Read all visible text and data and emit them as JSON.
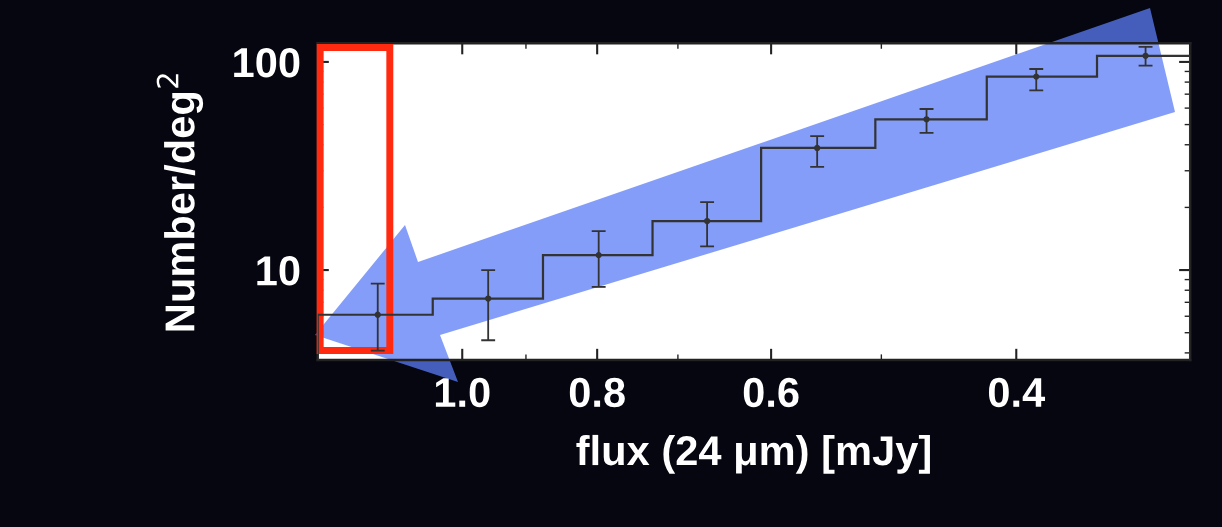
{
  "chart_data": {
    "type": "histogram",
    "xlabel": "flux (24 μm) [mJy]",
    "ylabel": "Number/deg$^{2}$",
    "bins": [
      1.27,
      1.05,
      0.875,
      0.73,
      0.61,
      0.505,
      0.42,
      0.35,
      0.3
    ],
    "values": [
      6.1,
      7.3,
      11.8,
      17.2,
      38.6,
      53,
      85,
      107
    ],
    "color": "#333333",
    "series": [
      {
        "type": "scatter",
        "marker": "circle",
        "color": "#333333",
        "x": [
          1.15,
          0.958,
          0.798,
          0.667,
          0.556,
          0.464,
          0.387,
          0.323
        ],
        "values": [
          6.1,
          7.3,
          11.8,
          17.2,
          38.6,
          53,
          85,
          107
        ],
        "errors": [
          [
            4.1,
            8.6
          ],
          [
            4.6,
            10.0
          ],
          [
            8.3,
            15.4
          ],
          [
            13.0,
            21.2
          ],
          [
            31.3,
            44
          ],
          [
            45.6,
            59.4
          ],
          [
            73,
            92.5
          ],
          [
            96,
            118
          ]
        ]
      }
    ],
    "log": "xy",
    "xlim": [
      1.27,
      0.3
    ],
    "xticks": [
      {
        "value": 1.0,
        "label": "1.0"
      },
      0.8,
      0.6,
      0.4
    ],
    "ylim": [
      3.7,
      123
    ],
    "yticks": [
      10,
      100
    ],
    "grid": false
  }
}
